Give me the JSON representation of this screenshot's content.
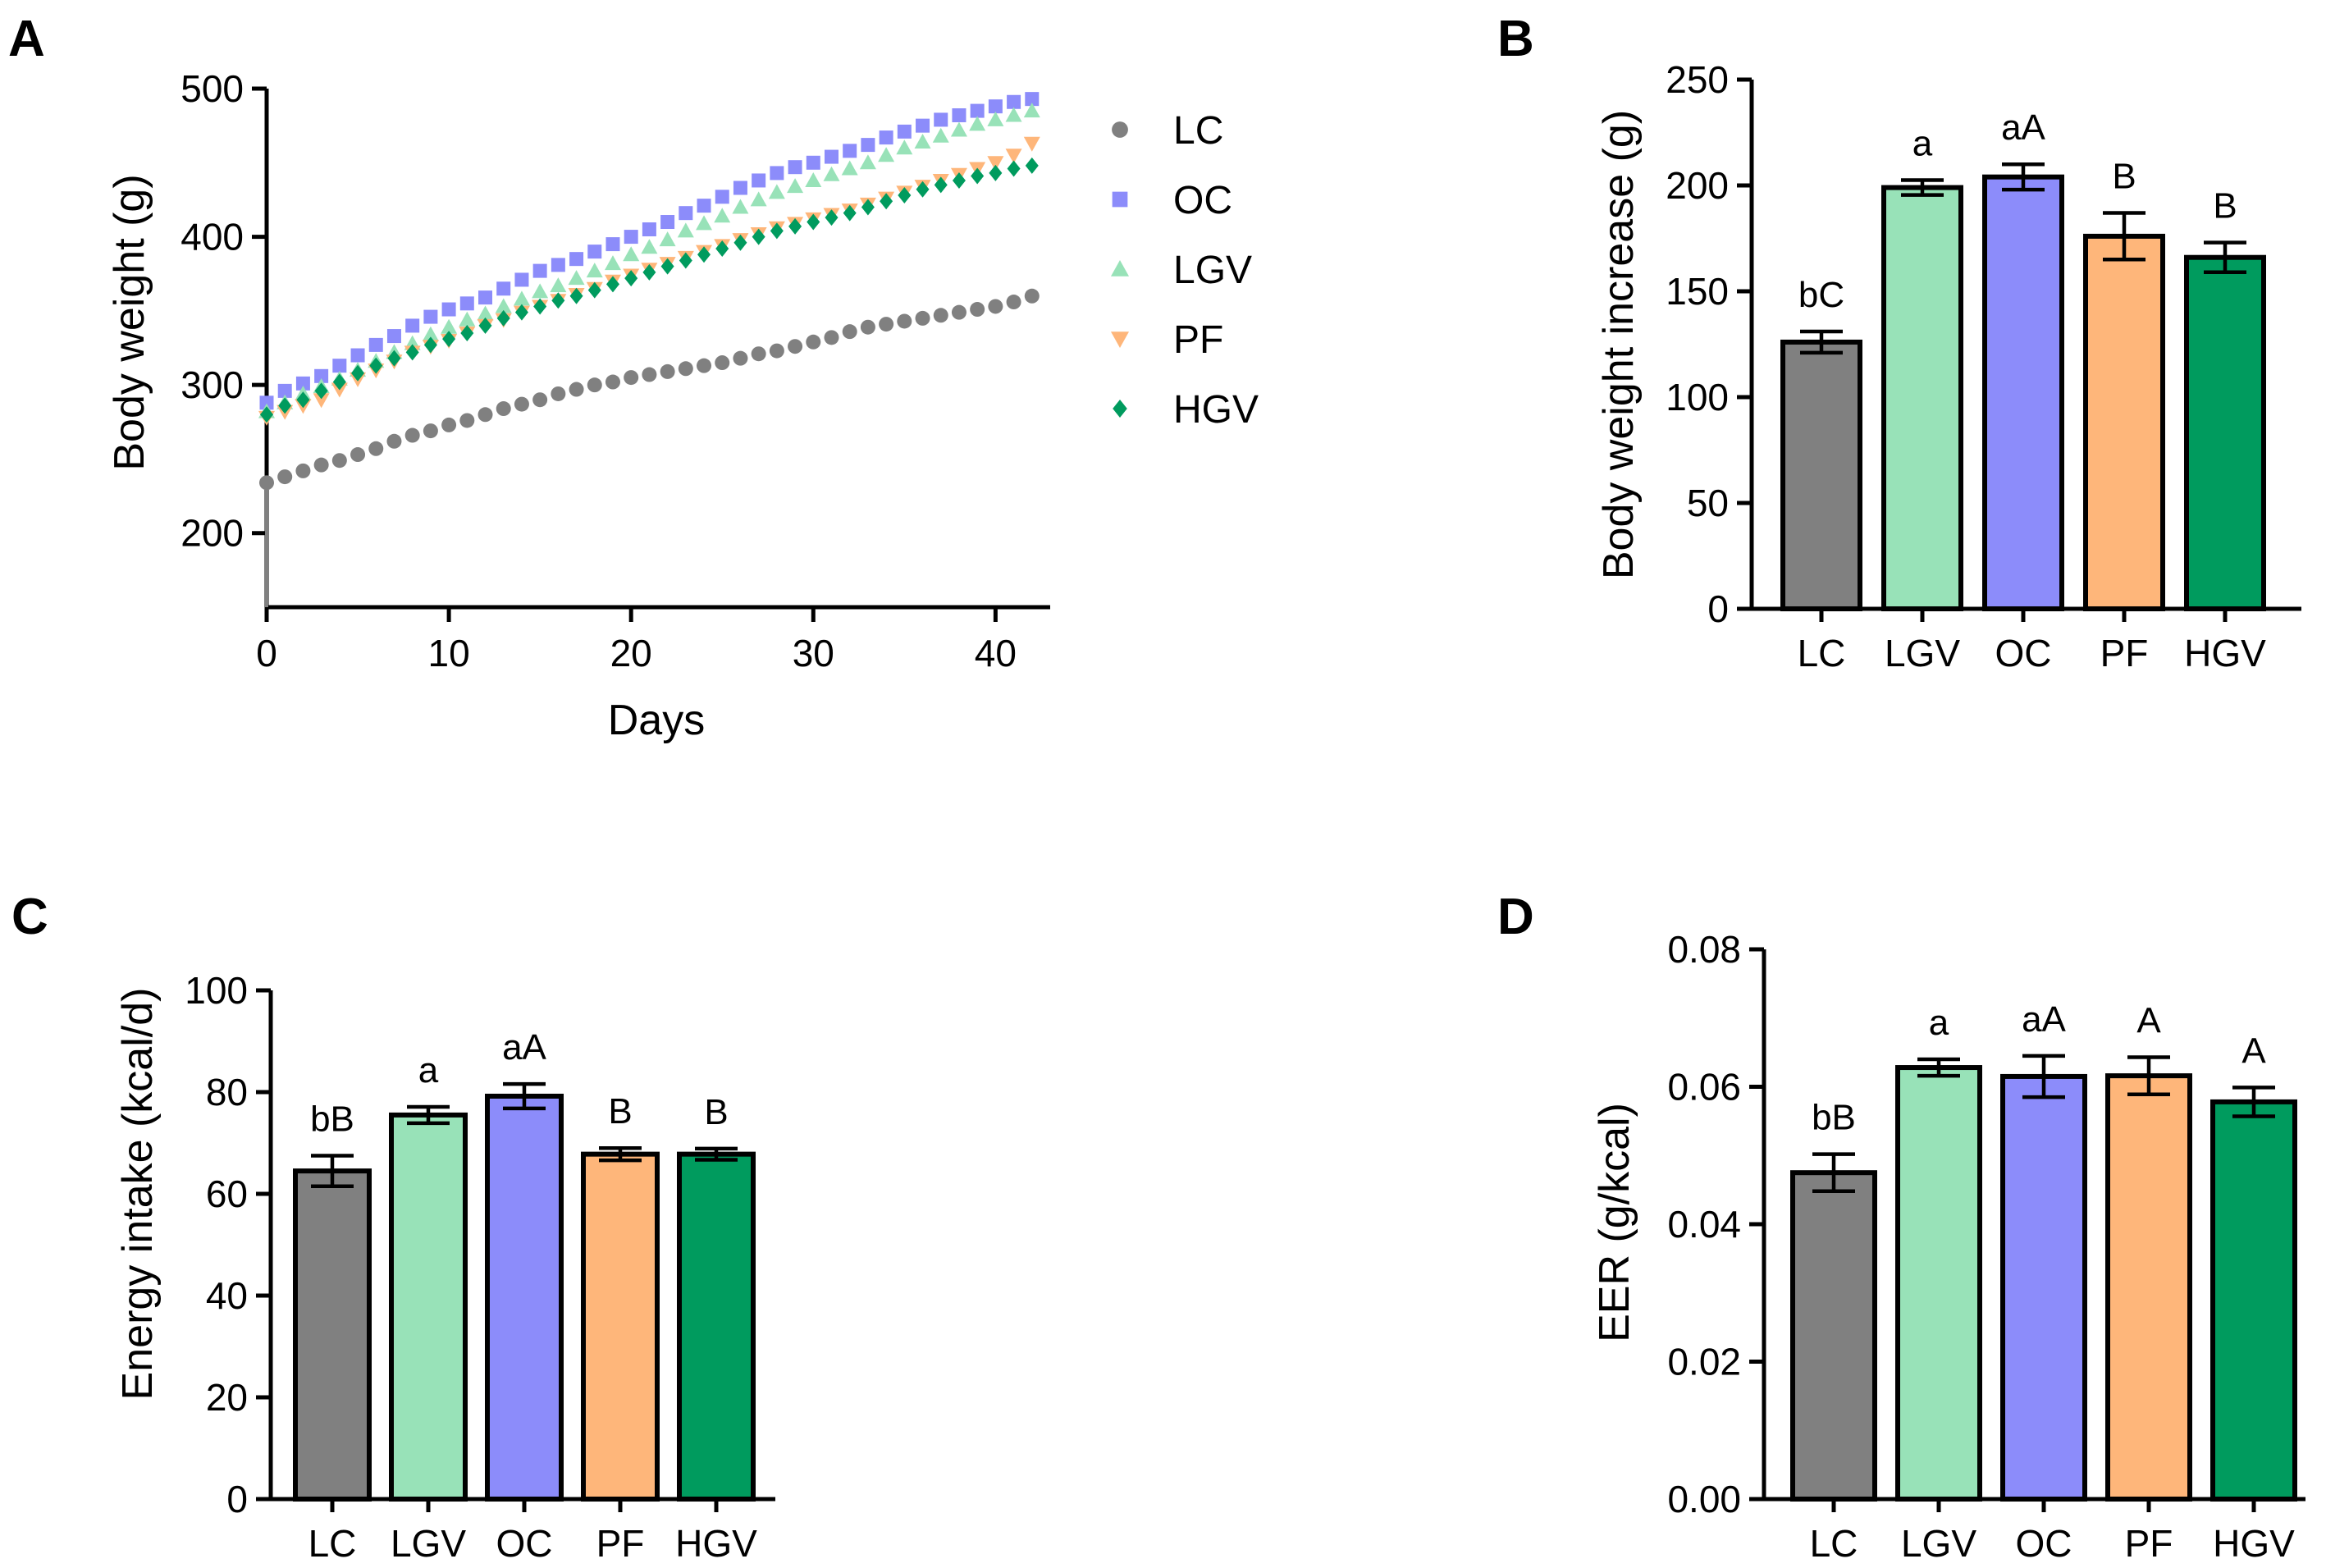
{
  "colors": {
    "LC": "#808080",
    "LGV": "#98e2b8",
    "OC": "#8c8cfa",
    "PF": "#feb67a",
    "HGV": "#009b5e"
  },
  "chart_data": [
    {
      "panel": "A",
      "type": "scatter",
      "title": "",
      "xlabel": "Days",
      "ylabel": "Body weight (g)",
      "xlim": [
        0,
        43
      ],
      "ylim": [
        150,
        500
      ],
      "xticks": [
        0,
        10,
        20,
        30,
        40
      ],
      "yticks": [
        200,
        300,
        400,
        500
      ],
      "legend_position": "right",
      "x": [
        0,
        1,
        2,
        3,
        4,
        5,
        6,
        7,
        8,
        9,
        10,
        11,
        12,
        13,
        14,
        15,
        16,
        17,
        18,
        19,
        20,
        21,
        22,
        23,
        24,
        25,
        26,
        27,
        28,
        29,
        30,
        31,
        32,
        33,
        34,
        35,
        36,
        37,
        38,
        39,
        40,
        41,
        42
      ],
      "series": [
        {
          "name": "LC",
          "marker": "circle",
          "values": [
            234,
            238,
            242,
            246,
            249,
            253,
            257,
            262,
            266,
            269,
            273,
            276,
            280,
            284,
            287,
            290,
            294,
            297,
            300,
            302,
            305,
            307,
            309,
            311,
            313,
            315,
            318,
            321,
            323,
            326,
            329,
            332,
            336,
            339,
            341,
            343,
            345,
            347,
            349,
            351,
            353,
            356,
            360
          ]
        },
        {
          "name": "OC",
          "marker": "square",
          "values": [
            288,
            296,
            301,
            306,
            313,
            320,
            327,
            333,
            340,
            346,
            351,
            355,
            359,
            365,
            371,
            377,
            381,
            385,
            390,
            395,
            400,
            405,
            410,
            416,
            421,
            427,
            433,
            438,
            443,
            447,
            450,
            454,
            458,
            462,
            467,
            471,
            475,
            479,
            482,
            485,
            488,
            491,
            493
          ]
        },
        {
          "name": "LGV",
          "marker": "triangle-up",
          "values": [
            282,
            288,
            294,
            299,
            304,
            310,
            316,
            322,
            328,
            334,
            339,
            344,
            348,
            353,
            358,
            363,
            367,
            372,
            377,
            382,
            388,
            393,
            398,
            404,
            409,
            414,
            420,
            425,
            430,
            434,
            438,
            442,
            446,
            450,
            455,
            460,
            464,
            468,
            472,
            476,
            479,
            482,
            485
          ]
        },
        {
          "name": "PF",
          "marker": "triangle-down",
          "values": [
            278,
            282,
            286,
            290,
            297,
            304,
            310,
            316,
            322,
            326,
            330,
            335,
            340,
            344,
            349,
            353,
            357,
            361,
            365,
            370,
            374,
            378,
            382,
            386,
            390,
            394,
            398,
            402,
            406,
            409,
            412,
            415,
            418,
            422,
            426,
            430,
            434,
            438,
            442,
            446,
            450,
            455,
            463
          ]
        },
        {
          "name": "HGV",
          "marker": "diamond",
          "values": [
            280,
            286,
            290,
            296,
            302,
            308,
            313,
            318,
            322,
            327,
            331,
            335,
            340,
            345,
            349,
            353,
            357,
            360,
            364,
            368,
            372,
            376,
            380,
            384,
            388,
            392,
            396,
            400,
            404,
            407,
            410,
            413,
            416,
            420,
            424,
            428,
            432,
            435,
            438,
            441,
            443,
            446,
            448
          ]
        }
      ]
    },
    {
      "panel": "B",
      "type": "bar",
      "xlabel": "",
      "ylabel": "Body weight increase (g)",
      "ylim": [
        0,
        250
      ],
      "yticks": [
        0,
        50,
        100,
        150,
        200,
        250
      ],
      "categories": [
        "LC",
        "LGV",
        "OC",
        "PF",
        "HGV"
      ],
      "values": [
        126,
        199,
        204,
        176,
        166
      ],
      "errors": [
        5,
        3.5,
        6,
        11,
        7
      ],
      "labels": [
        "bC",
        "a",
        "aA",
        "B",
        "B"
      ]
    },
    {
      "panel": "C",
      "type": "bar",
      "xlabel": "",
      "ylabel": "Energy intake (kcal/d)",
      "ylim": [
        0,
        100
      ],
      "yticks": [
        0,
        20,
        40,
        60,
        80,
        100
      ],
      "categories": [
        "LC",
        "LGV",
        "OC",
        "PF",
        "HGV"
      ],
      "values": [
        64.5,
        75.5,
        79.2,
        67.8,
        67.8
      ],
      "errors": [
        3,
        1.6,
        2.4,
        1.2,
        1.1
      ],
      "labels": [
        "bB",
        "a",
        "aA",
        "B",
        "B"
      ]
    },
    {
      "panel": "D",
      "type": "bar",
      "xlabel": "",
      "ylabel": "EER (g/kcal)",
      "ylim": [
        0,
        0.08
      ],
      "yticks": [
        "0.00",
        "0.02",
        "0.04",
        "0.06",
        "0.08"
      ],
      "categories": [
        "LC",
        "LGV",
        "OC",
        "PF",
        "HGV"
      ],
      "values": [
        0.0475,
        0.0628,
        0.0615,
        0.0616,
        0.0578
      ],
      "errors": [
        0.0027,
        0.0012,
        0.003,
        0.0027,
        0.0021
      ],
      "labels": [
        "bB",
        "a",
        "aA",
        "A",
        "A"
      ]
    }
  ]
}
